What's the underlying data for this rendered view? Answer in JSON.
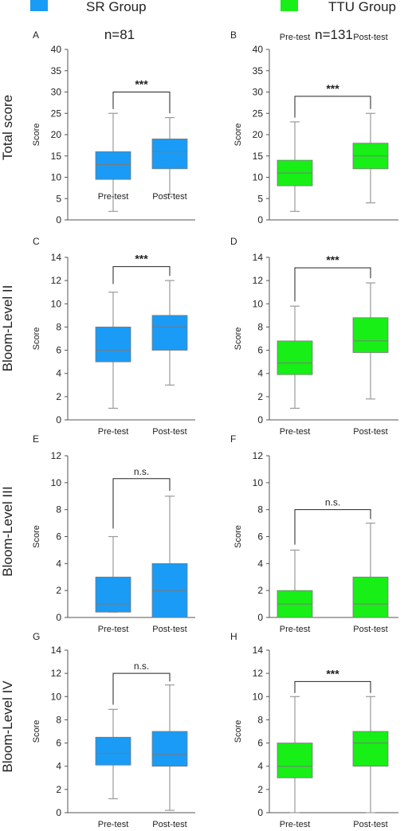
{
  "legend": [
    {
      "label": "SR Group",
      "n": "n=81",
      "color": "#1a9bf5"
    },
    {
      "label": "TTU Group",
      "n": "n=131",
      "color": "#17ef17"
    }
  ],
  "box_style": {
    "whisker_color": "#9a9a9a",
    "median_color": "#7a7a7a"
  },
  "chart_data": [
    {
      "panel": "A",
      "type": "box",
      "group": "SR Group",
      "row_label": "Total score",
      "ylabel": "Score",
      "ylim": [
        0,
        40
      ],
      "yticks": [
        "0",
        "5",
        "10",
        "15",
        "20",
        "25",
        "30",
        "35",
        "40"
      ],
      "categories": [
        "Pre-test",
        "Post-test"
      ],
      "boxes": [
        {
          "min": 2,
          "q1": 9.5,
          "median": 13,
          "q3": 16,
          "max": 25
        },
        {
          "min": 6,
          "q1": 12,
          "median": 16,
          "q3": 19,
          "max": 24
        }
      ],
      "significance": "***"
    },
    {
      "panel": "B",
      "type": "box",
      "group": "TTU Group",
      "row_label": "Total score",
      "ylabel": "Score",
      "ylim": [
        0,
        40
      ],
      "yticks": [
        "0",
        "5",
        "10",
        "15",
        "20",
        "25",
        "30",
        "35",
        "40"
      ],
      "categories": [
        "Pre-test",
        "Post-test"
      ],
      "boxes": [
        {
          "min": 2,
          "q1": 8,
          "median": 11,
          "q3": 14,
          "max": 23
        },
        {
          "min": 4,
          "q1": 12,
          "median": 15,
          "q3": 18,
          "max": 25
        }
      ],
      "significance": "***"
    },
    {
      "panel": "C",
      "type": "box",
      "group": "SR Group",
      "row_label": "Bloom-Level II",
      "ylabel": "Score",
      "ylim": [
        0,
        14
      ],
      "yticks": [
        "0",
        "2",
        "4",
        "6",
        "8",
        "10",
        "12",
        "14"
      ],
      "categories": [
        "Pre-test",
        "Post-test"
      ],
      "boxes": [
        {
          "min": 1,
          "q1": 5,
          "median": 6,
          "q3": 8,
          "max": 11
        },
        {
          "min": 3,
          "q1": 6,
          "median": 8,
          "q3": 9,
          "max": 12
        }
      ],
      "significance": "***"
    },
    {
      "panel": "D",
      "type": "box",
      "group": "TTU Group",
      "row_label": "Bloom-Level II",
      "ylabel": "Score",
      "ylim": [
        0,
        14
      ],
      "yticks": [
        "0",
        "2",
        "4",
        "6",
        "8",
        "10",
        "12",
        "14"
      ],
      "categories": [
        "Pre-test",
        "Post-test"
      ],
      "boxes": [
        {
          "min": 1,
          "q1": 3.9,
          "median": 4.9,
          "q3": 6.8,
          "max": 9.8
        },
        {
          "min": 1.8,
          "q1": 5.8,
          "median": 6.8,
          "q3": 8.8,
          "max": 11.8
        }
      ],
      "significance": "***"
    },
    {
      "panel": "E",
      "type": "box",
      "group": "SR Group",
      "row_label": "Bloom-Level III",
      "ylabel": "Score",
      "ylim": [
        0,
        12
      ],
      "yticks": [
        "0",
        "2",
        "4",
        "6",
        "8",
        "10",
        "12"
      ],
      "categories": [
        "Pre-test",
        "Post-test"
      ],
      "boxes": [
        {
          "min": 0.4,
          "q1": 0.4,
          "median": 1,
          "q3": 3,
          "max": 6
        },
        {
          "min": 0,
          "q1": 0,
          "median": 2,
          "q3": 4,
          "max": 9
        }
      ],
      "significance": "n.s."
    },
    {
      "panel": "F",
      "type": "box",
      "group": "TTU Group",
      "row_label": "Bloom-Level III",
      "ylabel": "Score",
      "ylim": [
        0,
        12
      ],
      "yticks": [
        "0",
        "2",
        "4",
        "6",
        "8",
        "10",
        "12"
      ],
      "categories": [
        "Pre-test",
        "Post-test"
      ],
      "boxes": [
        {
          "min": 0,
          "q1": 0,
          "median": 1,
          "q3": 2,
          "max": 5
        },
        {
          "min": 0,
          "q1": 0,
          "median": 1,
          "q3": 3,
          "max": 7
        }
      ],
      "significance": "n.s."
    },
    {
      "panel": "G",
      "type": "box",
      "group": "SR Group",
      "row_label": "Bloom-Level IV",
      "ylabel": "Score",
      "ylim": [
        0,
        14
      ],
      "yticks": [
        "0",
        "2",
        "4",
        "6",
        "8",
        "10",
        "12",
        "14"
      ],
      "categories": [
        "Pre-test",
        "Post-test"
      ],
      "boxes": [
        {
          "min": 1.2,
          "q1": 4.1,
          "median": 5.1,
          "q3": 6.5,
          "max": 8.9
        },
        {
          "min": 0.2,
          "q1": 4,
          "median": 5,
          "q3": 7,
          "max": 11
        }
      ],
      "significance": "n.s."
    },
    {
      "panel": "H",
      "type": "box",
      "group": "TTU Group",
      "row_label": "Bloom-Level IV",
      "ylabel": "Score",
      "ylim": [
        0,
        14
      ],
      "yticks": [
        "0",
        "2",
        "4",
        "6",
        "8",
        "10",
        "12",
        "14"
      ],
      "categories": [
        "Pre-test",
        "Post-test"
      ],
      "boxes": [
        {
          "min": 0,
          "q1": 3,
          "median": 4,
          "q3": 6,
          "max": 10
        },
        {
          "min": 0,
          "q1": 4,
          "median": 6,
          "q3": 7,
          "max": 10
        }
      ],
      "significance": "***"
    }
  ]
}
